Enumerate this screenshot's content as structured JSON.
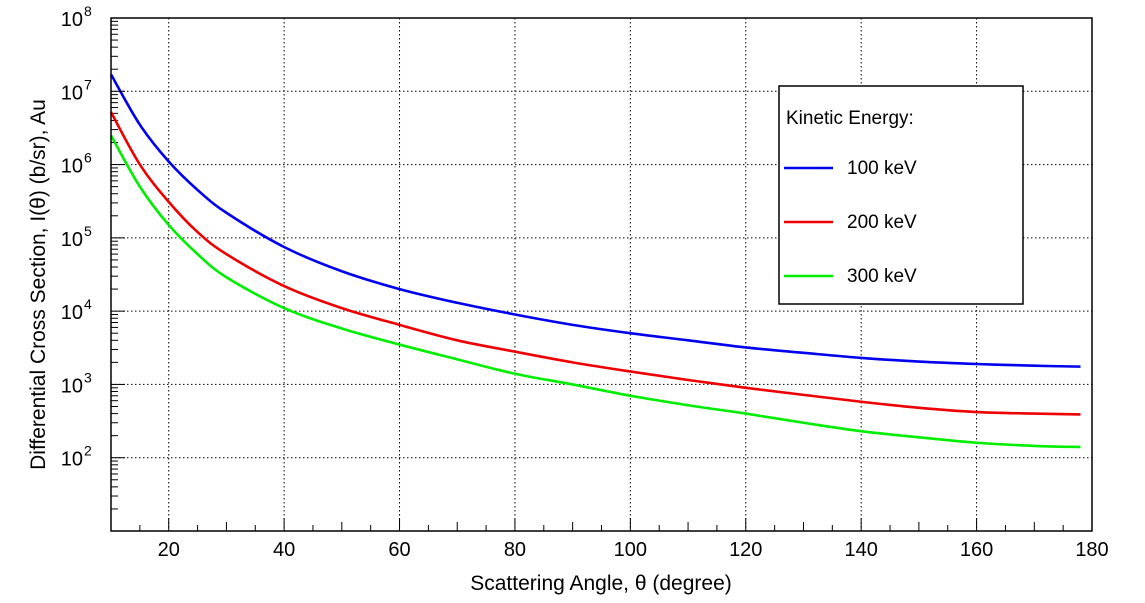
{
  "chart_data": {
    "type": "line",
    "title": "",
    "xlabel": "Scattering Angle, θ (degree)",
    "ylabel": "Differential Cross Section, I(θ) (b/sr), Au",
    "xlim": [
      10,
      180
    ],
    "ylim": [
      10,
      100000000
    ],
    "yscale": "log",
    "grid": true,
    "x_ticks": [
      20,
      40,
      60,
      80,
      100,
      120,
      140,
      160,
      180
    ],
    "y_ticks": [
      {
        "value": 100,
        "base": "10",
        "exp": "2"
      },
      {
        "value": 1000,
        "base": "10",
        "exp": "3"
      },
      {
        "value": 10000,
        "base": "10",
        "exp": "4"
      },
      {
        "value": 100000,
        "base": "10",
        "exp": "5"
      },
      {
        "value": 1000000,
        "base": "10",
        "exp": "6"
      },
      {
        "value": 10000000,
        "base": "10",
        "exp": "7"
      },
      {
        "value": 100000000,
        "base": "10",
        "exp": "8"
      }
    ],
    "legend": {
      "title": "Kinetic Energy:",
      "position": "top-right",
      "entries": [
        "100 keV",
        "200 keV",
        "300 keV"
      ]
    },
    "series": [
      {
        "name": "100 keV",
        "color": "#0000ee",
        "x": [
          10,
          15,
          20,
          25,
          30,
          40,
          50,
          60,
          70,
          80,
          90,
          100,
          110,
          120,
          130,
          140,
          150,
          160,
          170,
          178
        ],
        "y": [
          17000000,
          3500000,
          1100000,
          450000,
          220000,
          75000,
          35000,
          20000,
          13000,
          9000,
          6500,
          5000,
          4000,
          3200,
          2700,
          2300,
          2050,
          1900,
          1800,
          1750
        ]
      },
      {
        "name": "200 keV",
        "color": "#ee0000",
        "x": [
          10,
          15,
          20,
          25,
          30,
          40,
          50,
          60,
          70,
          80,
          90,
          100,
          110,
          120,
          130,
          140,
          150,
          160,
          170,
          178
        ],
        "y": [
          5200000,
          1000000,
          310000,
          120000,
          60000,
          22000,
          11000,
          6500,
          4000,
          2800,
          2000,
          1500,
          1150,
          900,
          720,
          580,
          480,
          420,
          400,
          390
        ]
      },
      {
        "name": "300 keV",
        "color": "#00ee00",
        "x": [
          10,
          15,
          20,
          25,
          30,
          40,
          50,
          60,
          70,
          80,
          90,
          100,
          110,
          120,
          130,
          140,
          150,
          160,
          170,
          178
        ],
        "y": [
          2500000,
          500000,
          150000,
          60000,
          29000,
          11000,
          5800,
          3500,
          2200,
          1400,
          1000,
          700,
          520,
          400,
          300,
          230,
          190,
          160,
          145,
          140
        ]
      }
    ]
  }
}
